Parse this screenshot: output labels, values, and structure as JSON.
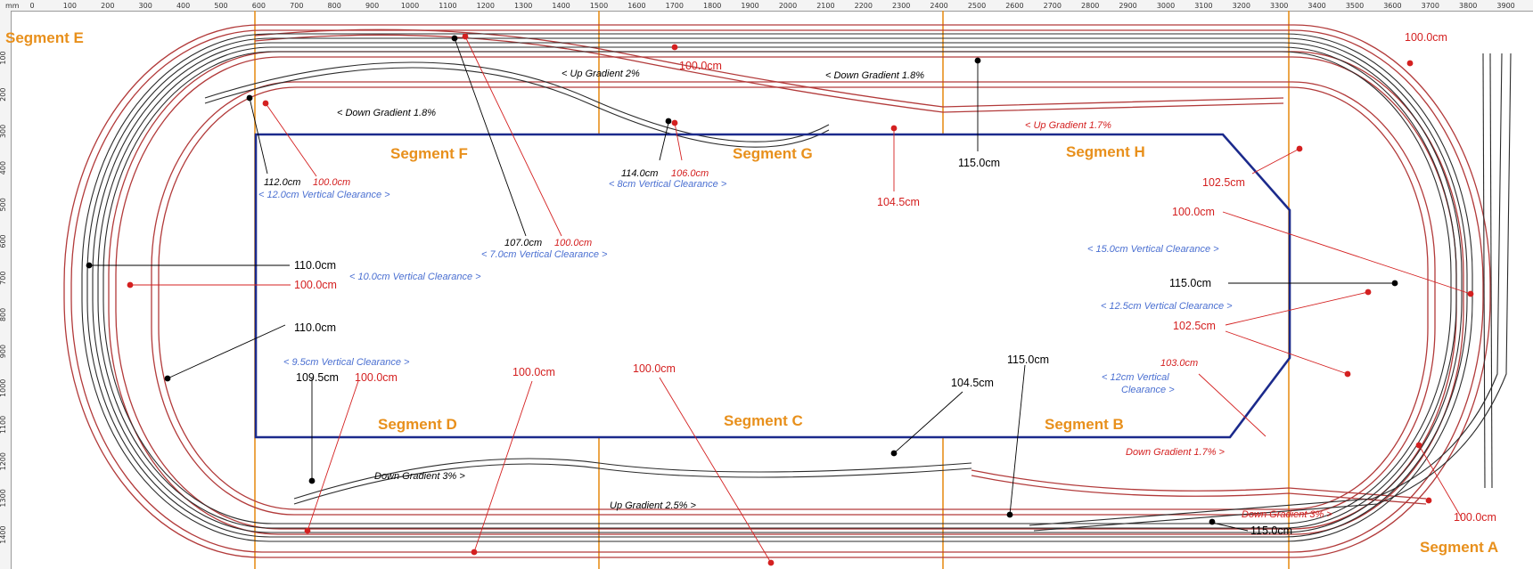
{
  "ruler": {
    "unit": "mm",
    "top_marks": [
      "0",
      "100",
      "200",
      "300",
      "400",
      "500",
      "600",
      "700",
      "800",
      "900",
      "1000",
      "1100",
      "1200",
      "1300",
      "1400",
      "1500",
      "1600",
      "1700",
      "1800",
      "1900",
      "2000",
      "2100",
      "2200",
      "2300",
      "2400",
      "2500",
      "2600",
      "2700",
      "2800",
      "2900",
      "3000",
      "3100",
      "3200",
      "3300",
      "3400",
      "3500",
      "3600",
      "3700",
      "3800",
      "3900"
    ],
    "left_marks": [
      "100",
      "200",
      "300",
      "400",
      "500",
      "600",
      "700",
      "800",
      "900",
      "1000",
      "1100",
      "1200",
      "1300",
      "1400"
    ]
  },
  "segments": {
    "e": "Segment E",
    "f": "Segment F",
    "g": "Segment G",
    "h": "Segment H",
    "a": "Segment A",
    "b": "Segment B",
    "c": "Segment C",
    "d": "Segment D"
  },
  "gradients": {
    "up_2": "< Up Gradient 2%",
    "down_18_right": "< Down Gradient 1.8%",
    "down_18_left": "< Down Gradient 1.8%",
    "up_17": "< Up Gradient 1.7%",
    "down_3_left": "Down Gradient 3% >",
    "up_25": "Up Gradient 2.5% >",
    "down_17_right": "Down Gradient 1.7% >",
    "down_3_right": "Down Gradient 3% >"
  },
  "clearances": {
    "c12": "< 12.0cm Vertical Clearance >",
    "c7": "< 7.0cm Vertical Clearance >",
    "c8": "< 8cm Vertical Clearance >",
    "c10": "< 10.0cm Vertical Clearance >",
    "c95": "< 9.5cm Vertical Clearance >",
    "c15": "< 15.0cm Vertical Clearance >",
    "c125": "< 12.5cm Vertical Clearance >",
    "c12b_line1": "< 12cm Vertical",
    "c12b_line2": "Clearance >"
  },
  "heights_black": {
    "h112": "112.0cm",
    "h107": "107.0cm",
    "h114": "114.0cm",
    "h115_top": "115.0cm",
    "h110_a": "110.0cm",
    "h110_b": "110.0cm",
    "h1095": "109.5cm",
    "h115_right": "115.0cm",
    "h1045": "104.5cm",
    "h115_mid": "115.0cm",
    "h115_bottom": "115.0cm"
  },
  "heights_red": {
    "r100_f": "100.0cm",
    "r100_f2": "100.0cm",
    "r106": "106.0cm",
    "r100_top": "100.0cm",
    "r100_topright": "100.0cm",
    "r1045": "104.5cm",
    "r1025_a": "102.5cm",
    "r100_right": "100.0cm",
    "r100_left": "100.0cm",
    "r1025_b": "102.5cm",
    "r103": "103.0cm",
    "r100_d": "100.0cm",
    "r100_bl": "100.0cm",
    "r100_bc": "100.0cm",
    "r100_br": "100.0cm"
  },
  "colors": {
    "board_outline": "#1b2a8c",
    "segment_line": "#e8901c",
    "track_upper": "#2b2b2b",
    "track_lower": "#b23a3a",
    "label_red": "#d42020",
    "label_blue": "#4a6fd1"
  }
}
